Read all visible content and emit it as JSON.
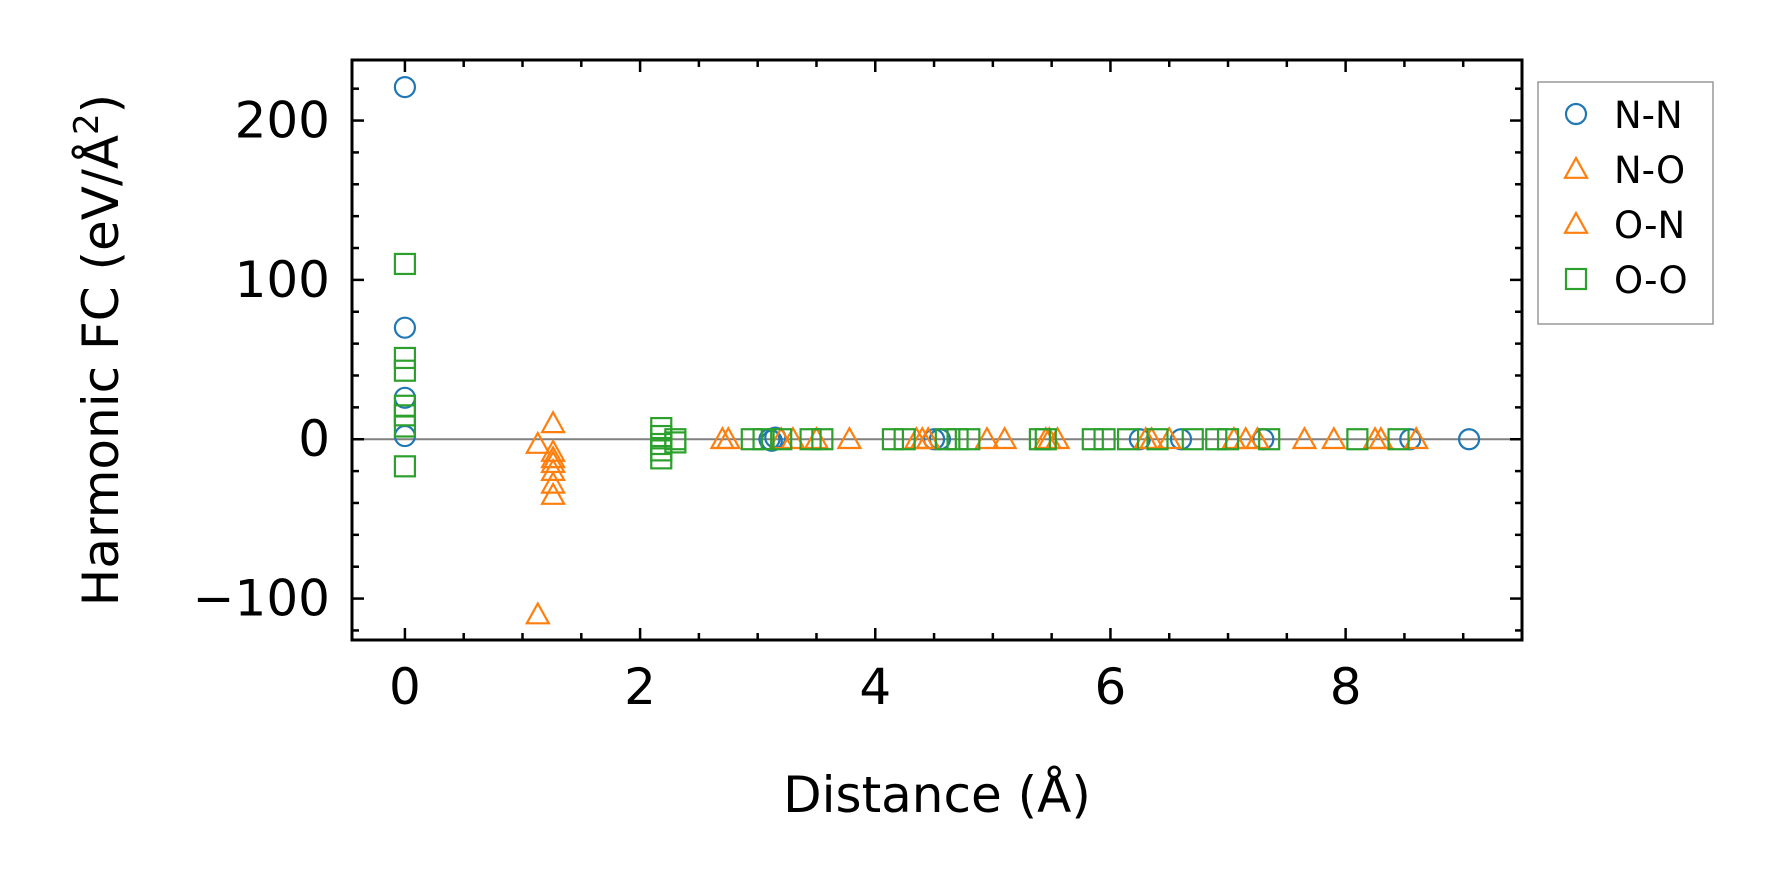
{
  "chart_data": {
    "type": "scatter",
    "xlabel": "Distance (Å)",
    "ylabel_main": "Harmonic FC (eV/Å",
    "ylabel_sup": "2",
    "ylabel_end": ")",
    "xlim": [
      -0.45,
      9.5
    ],
    "ylim": [
      -126,
      238
    ],
    "x_ticks": [
      0,
      2,
      4,
      6,
      8
    ],
    "x_tick_labels": [
      "0",
      "2",
      "4",
      "6",
      "8"
    ],
    "y_ticks": [
      -100,
      0,
      100,
      200
    ],
    "y_tick_labels": [
      "−100",
      "0",
      "100",
      "200"
    ],
    "x_minor_step": 0.5,
    "y_minor_step": 20,
    "zero_line": true,
    "grid": false,
    "legend_position": "right outside top",
    "series": [
      {
        "name": "N-N",
        "marker": "circle",
        "color": "#1f77b4",
        "points": [
          [
            0,
            221
          ],
          [
            0,
            70
          ],
          [
            0,
            26
          ],
          [
            0,
            2
          ],
          [
            3.1,
            0
          ],
          [
            3.12,
            -1
          ],
          [
            3.15,
            1
          ],
          [
            4.5,
            0
          ],
          [
            4.55,
            0
          ],
          [
            6.25,
            0
          ],
          [
            6.6,
            0
          ],
          [
            7.3,
            0
          ],
          [
            8.55,
            0
          ],
          [
            9.05,
            0
          ]
        ]
      },
      {
        "name": "N-O",
        "marker": "triangle",
        "color": "#ff7f0e",
        "points": [
          [
            1.13,
            -3
          ],
          [
            1.13,
            -110
          ],
          [
            1.26,
            10
          ],
          [
            1.26,
            -8
          ],
          [
            1.26,
            -12
          ],
          [
            1.26,
            -15
          ],
          [
            1.26,
            -20
          ],
          [
            1.26,
            -28
          ],
          [
            1.26,
            -35
          ],
          [
            2.7,
            0
          ],
          [
            3.3,
            0
          ],
          [
            3.5,
            0
          ],
          [
            3.78,
            0
          ],
          [
            4.35,
            0
          ],
          [
            4.4,
            0
          ],
          [
            4.95,
            0
          ],
          [
            5.1,
            0
          ],
          [
            5.45,
            0
          ],
          [
            5.55,
            0
          ],
          [
            6.3,
            0
          ],
          [
            6.5,
            0
          ],
          [
            7.05,
            0
          ],
          [
            7.15,
            0
          ],
          [
            7.65,
            0
          ],
          [
            7.9,
            0
          ],
          [
            8.25,
            0
          ],
          [
            8.6,
            0
          ]
        ]
      },
      {
        "name": "O-N",
        "marker": "triangle",
        "color": "#ff7f0e",
        "points": [
          [
            2.75,
            0
          ],
          [
            3.2,
            0
          ],
          [
            4.45,
            0
          ],
          [
            5.48,
            0
          ],
          [
            6.35,
            0
          ],
          [
            7.25,
            0
          ],
          [
            8.3,
            0
          ]
        ]
      },
      {
        "name": "O-O",
        "marker": "square",
        "color": "#2ca02c",
        "points": [
          [
            0,
            110
          ],
          [
            0,
            51
          ],
          [
            0,
            43
          ],
          [
            0,
            21
          ],
          [
            0,
            15
          ],
          [
            0,
            8
          ],
          [
            0,
            -17
          ],
          [
            2.18,
            7
          ],
          [
            2.18,
            2
          ],
          [
            2.18,
            -3
          ],
          [
            2.18,
            -7
          ],
          [
            2.18,
            -12
          ],
          [
            2.3,
            0
          ],
          [
            2.3,
            -2
          ],
          [
            2.95,
            0
          ],
          [
            3.05,
            0
          ],
          [
            3.2,
            0
          ],
          [
            3.45,
            0
          ],
          [
            3.55,
            0
          ],
          [
            4.15,
            0
          ],
          [
            4.25,
            0
          ],
          [
            4.6,
            0
          ],
          [
            4.7,
            0
          ],
          [
            4.8,
            0
          ],
          [
            5.4,
            0
          ],
          [
            5.45,
            0
          ],
          [
            5.85,
            0
          ],
          [
            5.95,
            0
          ],
          [
            6.15,
            0
          ],
          [
            6.4,
            0
          ],
          [
            6.7,
            0
          ],
          [
            6.9,
            0
          ],
          [
            7.0,
            0
          ],
          [
            7.35,
            0
          ],
          [
            8.1,
            0
          ],
          [
            8.45,
            0
          ]
        ]
      }
    ]
  }
}
